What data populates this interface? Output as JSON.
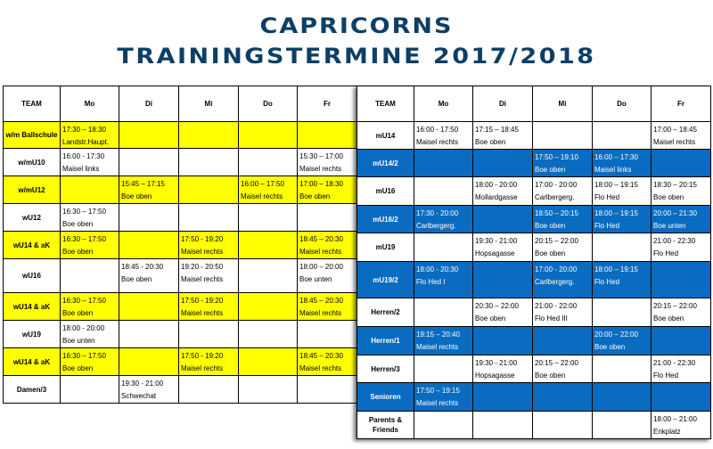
{
  "header": {
    "title": "CAPRICORNS",
    "subtitle": "TRAININGSTERMINE 2017/2018"
  },
  "colors": {
    "title": "#0d3f66",
    "yellow_rows": "#ffff00",
    "blue_rows": "#0a6cc0"
  },
  "columns": [
    "TEAM",
    "Mo",
    "Di",
    "Mi",
    "Do",
    "Fr"
  ],
  "left_table": {
    "rows": [
      {
        "team": "w/m Ballschule",
        "highlight": "yellow",
        "cells": [
          [
            "17:30 – 18:30",
            "Landstr.Haupt."
          ],
          null,
          null,
          null,
          null
        ]
      },
      {
        "team": "w/mU10",
        "highlight": "none",
        "cells": [
          [
            "16:00 - 17:30",
            "Maisel links"
          ],
          null,
          null,
          null,
          [
            "15:30 – 17:00",
            "Maisel rechts"
          ]
        ]
      },
      {
        "team": "w/mU12",
        "highlight": "yellow",
        "cells": [
          null,
          [
            "15:45 – 17:15",
            "Boe oben"
          ],
          null,
          [
            "16:00 – 17:50",
            "Maisel rechts"
          ],
          [
            "17:00 – 18:30",
            "Boe oben"
          ]
        ]
      },
      {
        "team": "wU12",
        "highlight": "none",
        "cells": [
          [
            "16:30 – 17:50",
            "Boe oben"
          ],
          null,
          null,
          null,
          null
        ]
      },
      {
        "team": "wU14 & aK",
        "highlight": "yellow",
        "cells": [
          [
            "16:30 – 17:50",
            "Boe oben"
          ],
          null,
          [
            "17:50 - 19:20",
            "Maisel rechts"
          ],
          null,
          [
            "18:45 – 20:30",
            "Maisel rechts"
          ]
        ]
      },
      {
        "team": "wU16",
        "highlight": "none",
        "cells": [
          null,
          [
            "18:45 - 20:30",
            "Boe oben"
          ],
          [
            "19:20 - 20:50",
            "Maisel rechts"
          ],
          null,
          [
            "18:00 – 20:00",
            "Boe unten"
          ]
        ]
      },
      {
        "team": "wU14 & aK",
        "highlight": "yellow",
        "cells": [
          [
            "16:30 – 17:50",
            "Boe oben"
          ],
          null,
          [
            "17:50 - 19:20",
            "Maisel rechts"
          ],
          null,
          [
            "18:45 – 20:30",
            "Maisel rechts"
          ]
        ]
      },
      {
        "team": "wU19",
        "highlight": "none",
        "cells": [
          [
            "18:00 - 20:00",
            "Boe unten"
          ],
          null,
          null,
          null,
          null
        ]
      },
      {
        "team": "wU14 & aK",
        "highlight": "yellow",
        "cells": [
          [
            "16:30 – 17:50",
            "Boe oben"
          ],
          null,
          [
            "17:50 - 19:20",
            "Maisel rechts"
          ],
          null,
          [
            "18:45 – 20:30",
            "Maisel rechts"
          ]
        ]
      },
      {
        "team": "Damen/3",
        "highlight": "none",
        "cells": [
          null,
          [
            "19:30 - 21:00",
            "Schwechat"
          ],
          null,
          null,
          null
        ]
      }
    ]
  },
  "right_table": {
    "rows": [
      {
        "team": "mU14",
        "highlight": "none",
        "cells": [
          [
            "16:00 - 17:50",
            "Maisel rechts"
          ],
          [
            "17:15 – 18:45",
            "Boe oben"
          ],
          null,
          null,
          [
            "17:00 – 18:45",
            "Maisel rechts"
          ]
        ]
      },
      {
        "team": "mU14/2",
        "highlight": "blue",
        "cells": [
          null,
          null,
          [
            "17:50 – 19:10",
            "Boe oben"
          ],
          [
            "16:00 – 17:30",
            "Maisel links"
          ],
          null
        ]
      },
      {
        "team": "mU16",
        "highlight": "none",
        "cells": [
          null,
          [
            "18:00 - 20:00",
            "Mollardgasse"
          ],
          [
            "17:00 - 20:00",
            "Carlbergerg."
          ],
          [
            "18:00 – 19:15",
            "Flo Hed"
          ],
          [
            "18:30 – 20:15",
            "Boe oben"
          ]
        ]
      },
      {
        "team": "mU16/2",
        "highlight": "blue",
        "cells": [
          [
            "17:30 - 20:00",
            "Carlbergerg."
          ],
          null,
          [
            "18:50 – 20:15",
            "Boe oben"
          ],
          [
            "18:00 – 19:15",
            "Flo Hed"
          ],
          [
            "20:00 – 21:30",
            "Boe unten"
          ]
        ]
      },
      {
        "team": "mU19",
        "highlight": "none",
        "cells": [
          null,
          [
            "19:30 - 21:00",
            "Hopsagasse"
          ],
          [
            "20:15 – 22:00",
            "Boe oben"
          ],
          null,
          [
            "21:00 - 22:30",
            "Flo Hed"
          ]
        ]
      },
      {
        "team": "mU19/2",
        "highlight": "blue",
        "cells": [
          [
            "18:00 - 20:30",
            "Flo Hed I"
          ],
          null,
          [
            "17:00 - 20:00",
            "Carlbergerg."
          ],
          [
            "18:00 – 19:15",
            "Flo Hed"
          ],
          null
        ]
      },
      {
        "team": "Herren/2",
        "highlight": "none",
        "cells": [
          null,
          [
            "20:30 – 22:00",
            "Boe oben"
          ],
          [
            "21:00 - 22:00",
            "Flo Hed III"
          ],
          null,
          [
            "20:15 – 22:00",
            "Boe oben"
          ]
        ]
      },
      {
        "team": "Herren/1",
        "highlight": "blue",
        "cells": [
          [
            "19:15 – 20:40",
            "Maisel rechts"
          ],
          null,
          null,
          [
            "20:00 – 22:00",
            "Boe oben"
          ],
          null
        ]
      },
      {
        "team": "Herren/3",
        "highlight": "none",
        "cells": [
          null,
          [
            "19:30 - 21:00",
            "Hopsagasse"
          ],
          [
            "20:15 – 22:00",
            "Boe oben"
          ],
          null,
          [
            "21:00 - 22:30",
            "Flo Hed"
          ]
        ]
      },
      {
        "team": "Senioren",
        "highlight": "blue",
        "cells": [
          [
            "17:50 – 19:15",
            "Maisel rechts"
          ],
          null,
          null,
          null,
          null
        ]
      },
      {
        "team": "Parents & Friends",
        "highlight": "none",
        "cells": [
          null,
          null,
          null,
          null,
          [
            "18:00 – 21:00",
            "Enkplatz"
          ]
        ]
      }
    ]
  }
}
